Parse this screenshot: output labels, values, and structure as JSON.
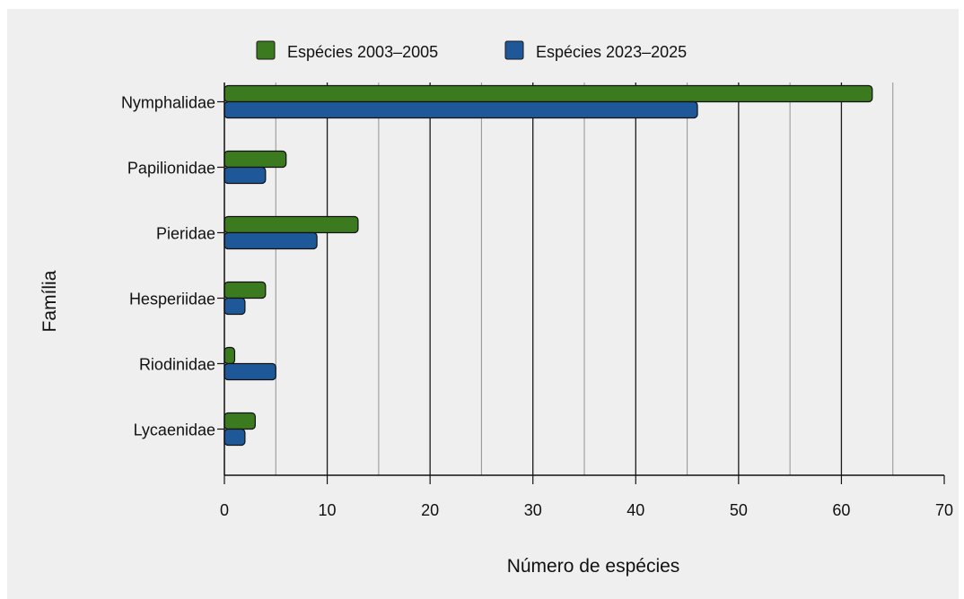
{
  "chart_data": {
    "type": "bar",
    "orientation": "horizontal",
    "categories": [
      "Nymphalidae",
      "Papilionidae",
      "Pieridae",
      "Hesperiidae",
      "Riodinidae",
      "Lycaenidae"
    ],
    "series": [
      {
        "name": "Espécies 2003–2005",
        "values": [
          63,
          6,
          13,
          4,
          1,
          3
        ],
        "color": "#3b7a1f"
      },
      {
        "name": "Espécies 2023–2025",
        "values": [
          46,
          4,
          9,
          2,
          5,
          2
        ],
        "color": "#1f5899"
      }
    ],
    "title": "",
    "xlabel": "Número de espécies",
    "ylabel": "Família",
    "xlim": [
      0,
      70
    ],
    "xticks": [
      0,
      10,
      20,
      30,
      40,
      50,
      60,
      70
    ],
    "grid": "vertical",
    "legend_position": "top"
  }
}
